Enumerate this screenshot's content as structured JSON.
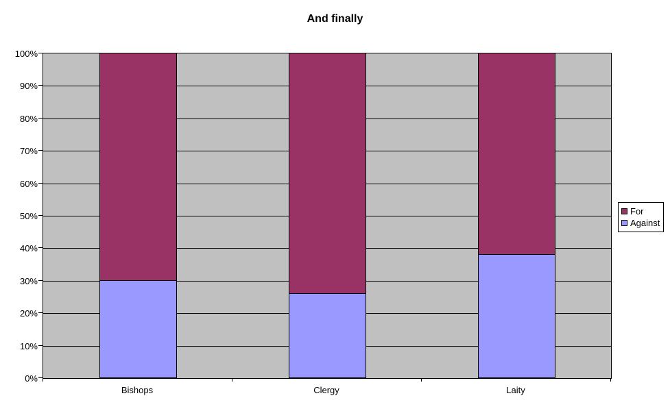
{
  "chart_data": {
    "type": "bar",
    "subtype": "100%-stacked-column",
    "title": "And finally",
    "categories": [
      "Bishops",
      "Clergy",
      "Laity"
    ],
    "series": [
      {
        "name": "For",
        "color": "#993366",
        "values": [
          70,
          74,
          62
        ]
      },
      {
        "name": "Against",
        "color": "#9999FF",
        "values": [
          30,
          26,
          38
        ]
      }
    ],
    "stack_order_bottom_to_top": [
      "Against",
      "For"
    ],
    "y_axis": {
      "min": 0,
      "max": 100,
      "step": 10,
      "tick_labels": [
        "0%",
        "10%",
        "20%",
        "30%",
        "40%",
        "50%",
        "60%",
        "70%",
        "80%",
        "90%",
        "100%"
      ]
    },
    "xlabel": "",
    "ylabel": "",
    "grid": "horizontal",
    "legend_position": "right",
    "colors": {
      "plot_background": "#C0C0C0",
      "gridline": "#000000",
      "axis": "#000000",
      "chart_background": "#FFFFFF",
      "text": "#000000"
    }
  }
}
